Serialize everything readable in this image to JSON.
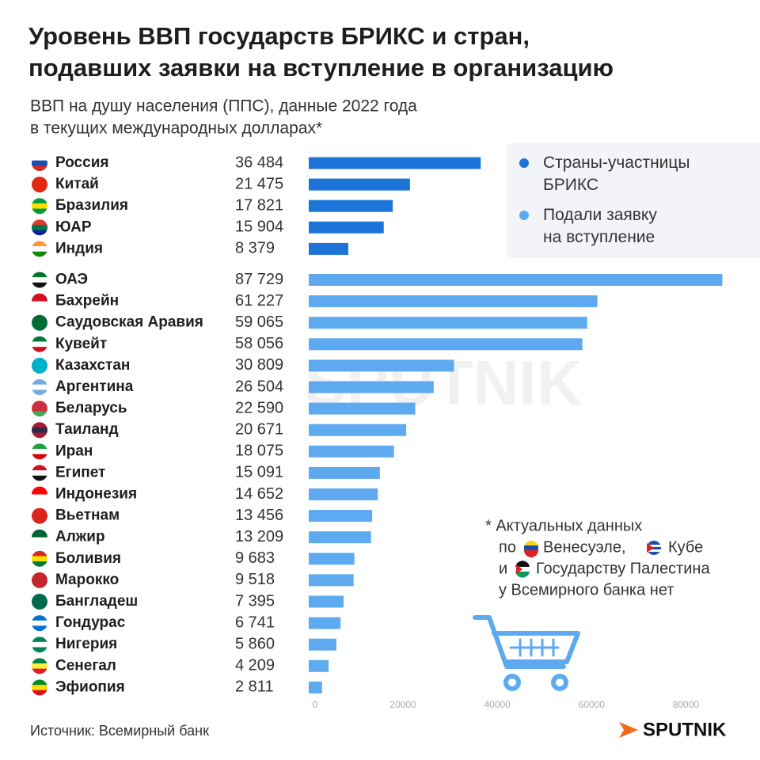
{
  "chart_data": {
    "type": "bar",
    "orientation": "horizontal",
    "title": [
      "Уровень ВВП государств БРИКС и стран,",
      "подавших заявки на вступление в организацию"
    ],
    "subtitle": [
      "ВВП на душу населения (ППС), данные 2022 года",
      "в текущих международных долларах*"
    ],
    "series": [
      {
        "name": "Страны-участницы БРИКС",
        "color": "#1c74d8",
        "categories": [
          "Россия",
          "Китай",
          "Бразилия",
          "ЮАР",
          "Индия"
        ],
        "values": [
          36484,
          21475,
          17821,
          15904,
          8379
        ],
        "value_labels": [
          "36 484",
          "21 475",
          "17 821",
          "15 904",
          "8 379"
        ]
      },
      {
        "name": "Подали заявку на вступление",
        "color": "#5eaaf0",
        "categories": [
          "ОАЭ",
          "Бахрейн",
          "Саудовская Аравия",
          "Кувейт",
          "Казахстан",
          "Аргентина",
          "Беларусь",
          "Таиланд",
          "Иран",
          "Египет",
          "Индонезия",
          "Вьетнам",
          "Алжир",
          "Боливия",
          "Марокко",
          "Бангладеш",
          "Гондурас",
          "Нигерия",
          "Сенегал",
          "Эфиопия"
        ],
        "values": [
          87729,
          61227,
          59065,
          58056,
          30809,
          26504,
          22590,
          20671,
          18075,
          15091,
          14652,
          13456,
          13209,
          9683,
          9518,
          7395,
          6741,
          5860,
          4209,
          2811
        ],
        "value_labels": [
          "87 729",
          "61 227",
          "59 065",
          "58 056",
          "30 809",
          "26 504",
          "22 590",
          "20 671",
          "18 075",
          "15 091",
          "14 652",
          "13 456",
          "13 209",
          "9 683",
          "9 518",
          "7 395",
          "6 741",
          "5 860",
          "4 209",
          "2 811"
        ]
      }
    ],
    "xlim": [
      0,
      88000
    ],
    "xticks": [
      0,
      20000,
      40000,
      60000,
      80000
    ],
    "footnote": [
      "* Актуальных данных",
      "по",
      "Венесуэле,",
      "Кубе",
      "и",
      "Государству Палестина",
      "у Всемирного банка нет"
    ],
    "source": "Источник: Всемирный банк",
    "watermark": "SPUTNIK",
    "brand": "SPUTNIK"
  }
}
